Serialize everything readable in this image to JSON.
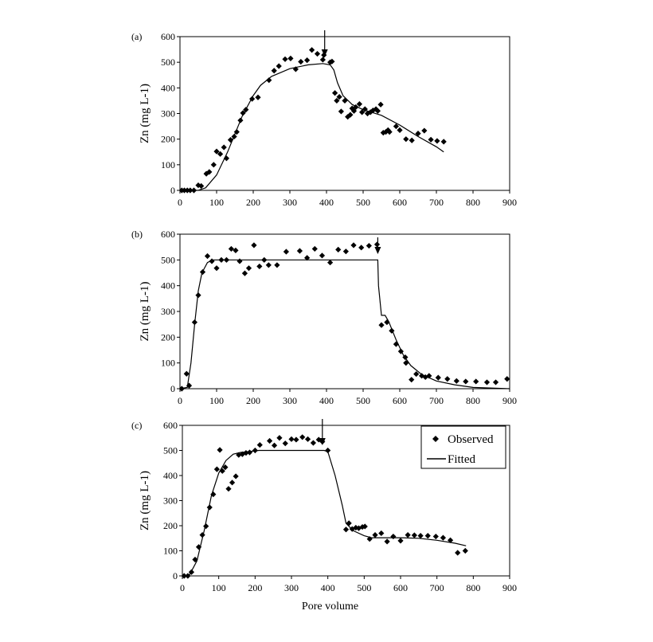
{
  "chart_data": [
    {
      "type": "scatter",
      "panel_label": "(a)",
      "xlabel": "",
      "ylabel": "Zn (mg L-1)",
      "xlim": [
        0,
        900
      ],
      "ylim": [
        0,
        600
      ],
      "xticks": [
        0,
        100,
        200,
        300,
        400,
        500,
        600,
        700,
        800,
        900
      ],
      "yticks": [
        0,
        100,
        200,
        300,
        400,
        500,
        600
      ],
      "grid": false,
      "arrow_x": 395,
      "series": [
        {
          "kind": "observed",
          "marker": "diamond",
          "points": [
            [
              5,
              0
            ],
            [
              12,
              0
            ],
            [
              20,
              0
            ],
            [
              28,
              0
            ],
            [
              38,
              0
            ],
            [
              50,
              20
            ],
            [
              58,
              17
            ],
            [
              72,
              65
            ],
            [
              80,
              72
            ],
            [
              92,
              100
            ],
            [
              100,
              152
            ],
            [
              110,
              142
            ],
            [
              120,
              168
            ],
            [
              127,
              125
            ],
            [
              138,
              197
            ],
            [
              148,
              210
            ],
            [
              155,
              228
            ],
            [
              165,
              273
            ],
            [
              172,
              302
            ],
            [
              180,
              315
            ],
            [
              197,
              357
            ],
            [
              213,
              363
            ],
            [
              243,
              430
            ],
            [
              257,
              467
            ],
            [
              270,
              485
            ],
            [
              287,
              512
            ],
            [
              302,
              515
            ],
            [
              316,
              473
            ],
            [
              330,
              502
            ],
            [
              347,
              508
            ],
            [
              360,
              548
            ],
            [
              375,
              533
            ],
            [
              390,
              510
            ],
            [
              393,
              528
            ],
            [
              410,
              500
            ],
            [
              415,
              503
            ],
            [
              423,
              380
            ],
            [
              428,
              350
            ],
            [
              435,
              365
            ],
            [
              440,
              308
            ],
            [
              450,
              350
            ],
            [
              458,
              287
            ],
            [
              465,
              295
            ],
            [
              470,
              320
            ],
            [
              475,
              310
            ],
            [
              480,
              325
            ],
            [
              490,
              337
            ],
            [
              497,
              305
            ],
            [
              505,
              317
            ],
            [
              512,
              300
            ],
            [
              520,
              305
            ],
            [
              527,
              312
            ],
            [
              535,
              317
            ],
            [
              540,
              310
            ],
            [
              548,
              335
            ],
            [
              555,
              225
            ],
            [
              562,
              228
            ],
            [
              568,
              235
            ],
            [
              572,
              228
            ],
            [
              590,
              250
            ],
            [
              600,
              235
            ],
            [
              617,
              200
            ],
            [
              633,
              195
            ],
            [
              650,
              222
            ],
            [
              667,
              233
            ],
            [
              685,
              198
            ],
            [
              702,
              193
            ],
            [
              720,
              190
            ]
          ]
        },
        {
          "kind": "fitted",
          "points": [
            [
              0,
              0
            ],
            [
              50,
              0
            ],
            [
              70,
              10
            ],
            [
              100,
              60
            ],
            [
              130,
              150
            ],
            [
              150,
              220
            ],
            [
              170,
              290
            ],
            [
              200,
              370
            ],
            [
              220,
              410
            ],
            [
              250,
              445
            ],
            [
              300,
              475
            ],
            [
              350,
              490
            ],
            [
              390,
              495
            ],
            [
              410,
              490
            ],
            [
              420,
              470
            ],
            [
              430,
              420
            ],
            [
              445,
              370
            ],
            [
              470,
              335
            ],
            [
              500,
              315
            ],
            [
              550,
              293
            ],
            [
              600,
              255
            ],
            [
              650,
              210
            ],
            [
              700,
              170
            ],
            [
              720,
              150
            ]
          ]
        }
      ]
    },
    {
      "type": "scatter",
      "panel_label": "(b)",
      "xlabel": "",
      "ylabel": "Zn (mg L-1)",
      "xlim": [
        0,
        900
      ],
      "ylim": [
        0,
        600
      ],
      "xticks": [
        0,
        100,
        200,
        300,
        400,
        500,
        600,
        700,
        800,
        900
      ],
      "yticks": [
        0,
        100,
        200,
        300,
        400,
        500,
        600
      ],
      "grid": false,
      "arrow_x": 540,
      "series": [
        {
          "kind": "observed",
          "marker": "diamond",
          "points": [
            [
              5,
              0
            ],
            [
              18,
              58
            ],
            [
              25,
              12
            ],
            [
              40,
              258
            ],
            [
              50,
              363
            ],
            [
              62,
              453
            ],
            [
              75,
              515
            ],
            [
              87,
              495
            ],
            [
              100,
              468
            ],
            [
              113,
              500
            ],
            [
              127,
              500
            ],
            [
              140,
              543
            ],
            [
              152,
              537
            ],
            [
              163,
              495
            ],
            [
              177,
              448
            ],
            [
              188,
              468
            ],
            [
              202,
              557
            ],
            [
              217,
              475
            ],
            [
              230,
              500
            ],
            [
              242,
              480
            ],
            [
              265,
              480
            ],
            [
              290,
              532
            ],
            [
              327,
              535
            ],
            [
              347,
              508
            ],
            [
              368,
              543
            ],
            [
              388,
              517
            ],
            [
              410,
              490
            ],
            [
              432,
              540
            ],
            [
              453,
              533
            ],
            [
              474,
              557
            ],
            [
              495,
              548
            ],
            [
              516,
              555
            ],
            [
              538,
              560
            ],
            [
              550,
              247
            ],
            [
              565,
              258
            ],
            [
              578,
              225
            ],
            [
              590,
              173
            ],
            [
              603,
              145
            ],
            [
              615,
              122
            ],
            [
              617,
              100
            ],
            [
              632,
              35
            ],
            [
              645,
              57
            ],
            [
              660,
              50
            ],
            [
              670,
              45
            ],
            [
              680,
              50
            ],
            [
              705,
              43
            ],
            [
              730,
              38
            ],
            [
              755,
              30
            ],
            [
              780,
              28
            ],
            [
              808,
              28
            ],
            [
              838,
              25
            ],
            [
              862,
              25
            ],
            [
              893,
              38
            ]
          ]
        },
        {
          "kind": "fitted",
          "points": [
            [
              0,
              0
            ],
            [
              20,
              5
            ],
            [
              30,
              100
            ],
            [
              40,
              250
            ],
            [
              50,
              380
            ],
            [
              60,
              450
            ],
            [
              75,
              490
            ],
            [
              90,
              500
            ],
            [
              540,
              500
            ],
            [
              542,
              400
            ],
            [
              550,
              285
            ],
            [
              560,
              285
            ],
            [
              570,
              260
            ],
            [
              590,
              190
            ],
            [
              610,
              130
            ],
            [
              630,
              90
            ],
            [
              660,
              55
            ],
            [
              700,
              30
            ],
            [
              750,
              15
            ],
            [
              800,
              5
            ],
            [
              900,
              0
            ]
          ]
        }
      ]
    },
    {
      "type": "scatter",
      "panel_label": "(c)",
      "xlabel": "Pore volume",
      "ylabel": "Zn (mg L-1)",
      "xlim": [
        0,
        900
      ],
      "ylim": [
        0,
        600
      ],
      "xticks": [
        0,
        100,
        200,
        300,
        400,
        500,
        600,
        700,
        800,
        900
      ],
      "yticks": [
        0,
        100,
        200,
        300,
        400,
        500,
        600
      ],
      "grid": false,
      "arrow_x": 385,
      "legend": {
        "placement": "top-right",
        "entries": [
          "Observed",
          "Fitted"
        ]
      },
      "series": [
        {
          "name": "Observed",
          "kind": "observed",
          "marker": "diamond",
          "points": [
            [
              5,
              0
            ],
            [
              15,
              0
            ],
            [
              25,
              15
            ],
            [
              35,
              65
            ],
            [
              45,
              115
            ],
            [
              55,
              163
            ],
            [
              65,
              198
            ],
            [
              75,
              273
            ],
            [
              85,
              325
            ],
            [
              95,
              425
            ],
            [
              103,
              502
            ],
            [
              110,
              418
            ],
            [
              118,
              433
            ],
            [
              127,
              347
            ],
            [
              137,
              372
            ],
            [
              147,
              397
            ],
            [
              155,
              482
            ],
            [
              165,
              485
            ],
            [
              175,
              490
            ],
            [
              185,
              492
            ],
            [
              200,
              500
            ],
            [
              213,
              522
            ],
            [
              240,
              538
            ],
            [
              253,
              520
            ],
            [
              267,
              550
            ],
            [
              283,
              528
            ],
            [
              300,
              545
            ],
            [
              313,
              543
            ],
            [
              330,
              553
            ],
            [
              345,
              545
            ],
            [
              360,
              530
            ],
            [
              375,
              543
            ],
            [
              385,
              535
            ],
            [
              400,
              500
            ],
            [
              450,
              185
            ],
            [
              458,
              210
            ],
            [
              467,
              187
            ],
            [
              477,
              192
            ],
            [
              485,
              190
            ],
            [
              495,
              195
            ],
            [
              502,
              197
            ],
            [
              515,
              147
            ],
            [
              530,
              163
            ],
            [
              547,
              170
            ],
            [
              563,
              137
            ],
            [
              580,
              157
            ],
            [
              600,
              140
            ],
            [
              620,
              163
            ],
            [
              638,
              162
            ],
            [
              655,
              160
            ],
            [
              675,
              160
            ],
            [
              697,
              157
            ],
            [
              717,
              152
            ],
            [
              737,
              142
            ],
            [
              757,
              92
            ],
            [
              778,
              100
            ]
          ]
        },
        {
          "name": "Fitted",
          "kind": "fitted",
          "points": [
            [
              0,
              0
            ],
            [
              20,
              5
            ],
            [
              40,
              60
            ],
            [
              60,
              180
            ],
            [
              80,
              320
            ],
            [
              100,
              410
            ],
            [
              120,
              460
            ],
            [
              140,
              485
            ],
            [
              160,
              492
            ],
            [
              200,
              498
            ],
            [
              210,
              500
            ],
            [
              390,
              500
            ],
            [
              400,
              495
            ],
            [
              420,
              400
            ],
            [
              440,
              280
            ],
            [
              450,
              210
            ],
            [
              470,
              180
            ],
            [
              500,
              160
            ],
            [
              520,
              152
            ],
            [
              600,
              152
            ],
            [
              650,
              150
            ],
            [
              700,
              142
            ],
            [
              750,
              130
            ],
            [
              780,
              120
            ]
          ]
        }
      ]
    }
  ]
}
